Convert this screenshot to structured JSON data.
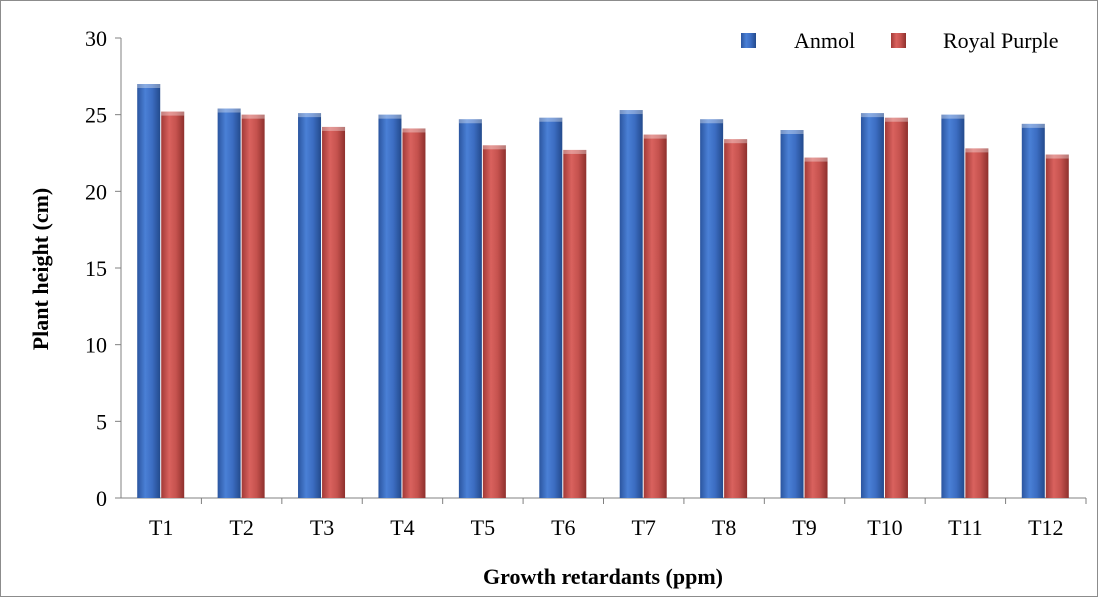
{
  "chart_data": {
    "type": "bar",
    "categories": [
      "T1",
      "T2",
      "T3",
      "T4",
      "T5",
      "T6",
      "T7",
      "T8",
      "T9",
      "T10",
      "T11",
      "T12"
    ],
    "series": [
      {
        "name": "Anmol",
        "color": "#3F6FBF",
        "values": [
          27.0,
          25.4,
          25.1,
          25.0,
          24.7,
          24.8,
          25.3,
          24.7,
          24.0,
          25.1,
          25.0,
          24.4
        ]
      },
      {
        "name": "Royal Purple",
        "color": "#C0504D",
        "values": [
          25.2,
          25.0,
          24.2,
          24.1,
          23.0,
          22.7,
          23.7,
          23.4,
          22.2,
          24.8,
          22.8,
          22.4
        ]
      }
    ],
    "xlabel": "Growth retardants (ppm)",
    "ylabel": "Plant height (cm)",
    "ylim": [
      0,
      30
    ],
    "yticks": [
      0,
      5,
      10,
      15,
      20,
      25,
      30
    ],
    "grid": false,
    "legend_position": "top-right"
  }
}
